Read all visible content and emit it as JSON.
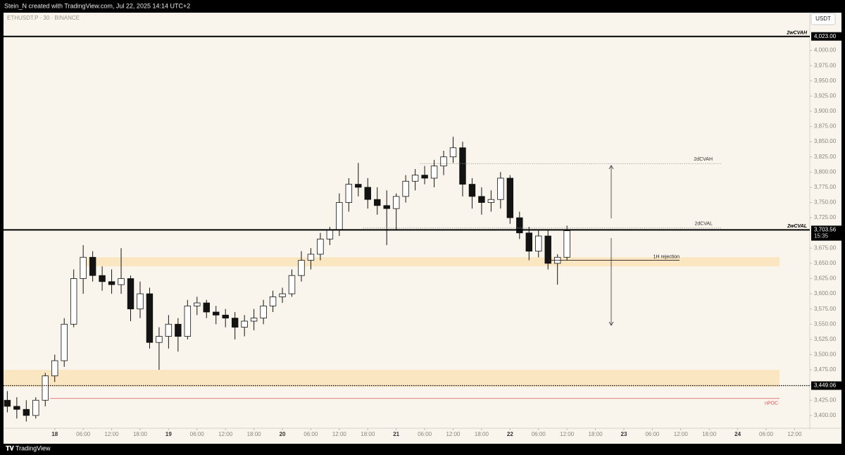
{
  "header": {
    "credit": "Stein_N created with TradingView.com, Jul 22, 2025 14:14 UTC+2",
    "currency": "USDT"
  },
  "footer": {
    "brand": "TradingView"
  },
  "chart_data": {
    "type": "candlestick",
    "title": "ETHUSDT.P · 30 · BINANCE",
    "open": [
      3425,
      3415,
      3410,
      3400,
      3425,
      3465,
      3490,
      3550,
      3625,
      3660,
      3630,
      3620,
      3615,
      3625,
      3575,
      3600,
      3520,
      3530,
      3550,
      3530,
      3580,
      3585,
      3570,
      3565,
      3560,
      3545,
      3555,
      3560,
      3580,
      3595,
      3600,
      3630,
      3655,
      3665,
      3690,
      3705,
      3750,
      3780,
      3775,
      3755,
      3745,
      3740,
      3760,
      3785,
      3795,
      3790,
      3810,
      3825,
      3840,
      3780,
      3760,
      3750,
      3755,
      3790,
      3725,
      3700,
      3670,
      3695,
      3650,
      3660
    ],
    "high": [
      3440,
      3430,
      3425,
      3430,
      3470,
      3500,
      3560,
      3640,
      3680,
      3670,
      3645,
      3640,
      3675,
      3630,
      3620,
      3610,
      3545,
      3565,
      3560,
      3590,
      3595,
      3590,
      3580,
      3575,
      3570,
      3565,
      3575,
      3590,
      3605,
      3610,
      3640,
      3670,
      3675,
      3700,
      3710,
      3765,
      3790,
      3815,
      3790,
      3775,
      3770,
      3765,
      3795,
      3805,
      3810,
      3820,
      3835,
      3858,
      3850,
      3790,
      3775,
      3770,
      3800,
      3795,
      3735,
      3710,
      3705,
      3705,
      3665,
      3712
    ],
    "low": [
      3405,
      3395,
      3390,
      3395,
      3415,
      3455,
      3480,
      3545,
      3600,
      3620,
      3605,
      3600,
      3600,
      3555,
      3560,
      3510,
      3475,
      3510,
      3505,
      3525,
      3565,
      3560,
      3550,
      3545,
      3525,
      3530,
      3540,
      3550,
      3570,
      3585,
      3595,
      3620,
      3640,
      3655,
      3680,
      3695,
      3735,
      3760,
      3740,
      3730,
      3680,
      3705,
      3750,
      3770,
      3780,
      3775,
      3795,
      3815,
      3760,
      3740,
      3730,
      3735,
      3740,
      3715,
      3690,
      3655,
      3660,
      3640,
      3615,
      3655
    ],
    "close": [
      3415,
      3410,
      3400,
      3425,
      3465,
      3490,
      3550,
      3625,
      3660,
      3630,
      3620,
      3615,
      3625,
      3575,
      3600,
      3520,
      3530,
      3550,
      3530,
      3580,
      3585,
      3570,
      3565,
      3560,
      3545,
      3555,
      3560,
      3580,
      3595,
      3600,
      3630,
      3655,
      3665,
      3690,
      3705,
      3750,
      3780,
      3775,
      3755,
      3745,
      3740,
      3760,
      3785,
      3795,
      3790,
      3810,
      3825,
      3840,
      3780,
      3760,
      3750,
      3755,
      3790,
      3725,
      3700,
      3670,
      3695,
      3650,
      3660,
      3703.56
    ],
    "up_color": "#ffffff",
    "down_color": "#131313",
    "xlim": [
      -0.4,
      84.6
    ],
    "xticks": [
      {
        "value": 5,
        "label": "18"
      },
      {
        "value": 8,
        "label": "06:00"
      },
      {
        "value": 11,
        "label": "12:00"
      },
      {
        "value": 14,
        "label": "18:00"
      },
      {
        "value": 17,
        "label": "19"
      },
      {
        "value": 20,
        "label": "06:00"
      },
      {
        "value": 23,
        "label": "12:00"
      },
      {
        "value": 26,
        "label": "18:00"
      },
      {
        "value": 29,
        "label": "20"
      },
      {
        "value": 32,
        "label": "06:00"
      },
      {
        "value": 35,
        "label": "12:00"
      },
      {
        "value": 38,
        "label": "18:00"
      },
      {
        "value": 41,
        "label": "21"
      },
      {
        "value": 44,
        "label": "06:00"
      },
      {
        "value": 47,
        "label": "12:00"
      },
      {
        "value": 50,
        "label": "18:00"
      },
      {
        "value": 53,
        "label": "22"
      },
      {
        "value": 56,
        "label": "06:00"
      },
      {
        "value": 59,
        "label": "12:00"
      },
      {
        "value": 62,
        "label": "18:00"
      },
      {
        "value": 65,
        "label": "23"
      },
      {
        "value": 68,
        "label": "06:00"
      },
      {
        "value": 71,
        "label": "12:00"
      },
      {
        "value": 74,
        "label": "18:00"
      },
      {
        "value": 77,
        "label": "24"
      },
      {
        "value": 80,
        "label": "06:00"
      },
      {
        "value": 83,
        "label": "12:00"
      }
    ],
    "ylim": [
      3379,
      4062
    ],
    "yticks": [
      {
        "value": 3400,
        "label": "3,400.00"
      },
      {
        "value": 3425,
        "label": "3,425.00"
      },
      {
        "value": 3450,
        "label": "3,450.00"
      },
      {
        "value": 3475,
        "label": "3,475.00"
      },
      {
        "value": 3500,
        "label": "3,500.00"
      },
      {
        "value": 3525,
        "label": "3,525.00"
      },
      {
        "value": 3550,
        "label": "3,550.00"
      },
      {
        "value": 3575,
        "label": "3,575.00"
      },
      {
        "value": 3600,
        "label": "3,600.00"
      },
      {
        "value": 3625,
        "label": "3,625.00"
      },
      {
        "value": 3650,
        "label": "3,650.00"
      },
      {
        "value": 3675,
        "label": "3,675.00"
      },
      {
        "value": 3725,
        "label": "3,725.00"
      },
      {
        "value": 3750,
        "label": "3,750.00"
      },
      {
        "value": 3775,
        "label": "3,775.00"
      },
      {
        "value": 3800,
        "label": "3,800.00"
      },
      {
        "value": 3825,
        "label": "3,825.00"
      },
      {
        "value": 3850,
        "label": "3,850.00"
      },
      {
        "value": 3875,
        "label": "3,875.00"
      },
      {
        "value": 3900,
        "label": "3,900.00"
      },
      {
        "value": 3925,
        "label": "3,925.00"
      },
      {
        "value": 3950,
        "label": "3,950.00"
      },
      {
        "value": 3975,
        "label": "3,975.00"
      },
      {
        "value": 4000,
        "label": "4,000.00"
      }
    ],
    "zones": [
      {
        "range": [
          3645,
          3660
        ],
        "color": "#fbe3bb"
      },
      {
        "range": [
          3447,
          3475
        ],
        "color": "#fbe3bb"
      }
    ],
    "levels": [
      {
        "name": "2wCVAH",
        "value": 4023,
        "label": "4,023.00",
        "style": "bold"
      },
      {
        "name": "2wCVAL",
        "value": 3705,
        "label": "3,705.00",
        "style": "bold"
      },
      {
        "name": "2dCVAH",
        "value": 3814,
        "style": "dotted"
      },
      {
        "name": "2dCVAL",
        "value": 3708,
        "style": "dotted"
      },
      {
        "name": "1H rejection",
        "value": 3655,
        "style": "thin"
      },
      {
        "name": "nPOC",
        "value": 3428,
        "style": "red"
      }
    ],
    "marker_level": {
      "value": 3449.06,
      "label": "3,449.06"
    },
    "last_price": {
      "value": 3703.56,
      "label": "3,703.56",
      "countdown": "15:35"
    }
  }
}
